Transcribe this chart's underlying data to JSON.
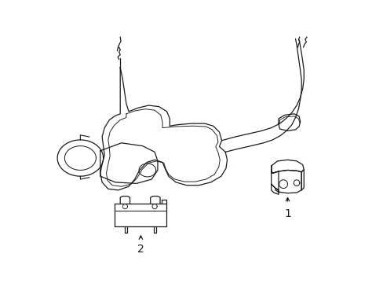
{
  "bg_color": "#ffffff",
  "line_color": "#1a1a1a",
  "line_width": 0.9,
  "figsize": [
    4.89,
    3.6
  ],
  "dpi": 100,
  "label1": "1",
  "label2": "2",
  "label1_fontsize": 10,
  "label2_fontsize": 10
}
